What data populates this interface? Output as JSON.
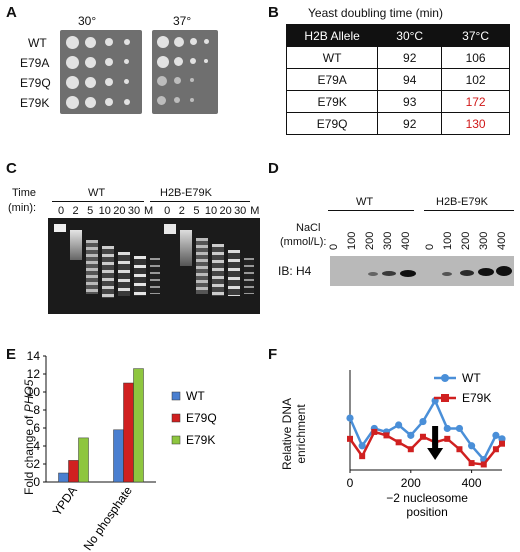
{
  "panels": {
    "A": "A",
    "B": "B",
    "C": "C",
    "D": "D",
    "E": "E",
    "F": "F"
  },
  "panelA": {
    "temps": [
      "30°",
      "37°"
    ],
    "strains": [
      "WT",
      "E79A",
      "E79Q",
      "E79K"
    ]
  },
  "panelB": {
    "title": "Yeast doubling time (min)",
    "headers": [
      "H2B Allele",
      "30°C",
      "37°C"
    ],
    "rows": [
      {
        "allele": "WT",
        "t30": "92",
        "t37": "106",
        "highlight": false
      },
      {
        "allele": "E79A",
        "t30": "94",
        "t37": "102",
        "highlight": false
      },
      {
        "allele": "E79K",
        "t30": "93",
        "t37": "172",
        "highlight": true
      },
      {
        "allele": "E79Q",
        "t30": "92",
        "t37": "130",
        "highlight": true
      }
    ]
  },
  "panelC": {
    "time_label_1": "Time",
    "time_label_2": "(min):",
    "group_wt": "WT",
    "group_mut": "H2B-E79K",
    "lanes": [
      "0",
      "2",
      "5",
      "10",
      "20",
      "30",
      "M",
      "0",
      "2",
      "5",
      "10",
      "20",
      "30",
      "M"
    ]
  },
  "panelD": {
    "nacl_1": "NaCl",
    "nacl_2": "(mmol/L):",
    "group_wt": "WT",
    "group_mut": "H2B-E79K",
    "lanes": [
      "0",
      "100",
      "200",
      "300",
      "400",
      "0",
      "100",
      "200",
      "300",
      "400"
    ],
    "ib_label": "IB: H4"
  },
  "chart_data": [
    {
      "type": "bar",
      "panel": "E",
      "ylabel_prefix": "Fold change of ",
      "ylabel_gene": "PHO5",
      "categories": [
        "YPDA",
        "No phosphate"
      ],
      "yticks": [
        "0",
        "2",
        "4",
        "6",
        "8",
        "10",
        "12",
        "14"
      ],
      "ylim": [
        0,
        14
      ],
      "series": [
        {
          "name": "WT",
          "color": "#4a7fd0",
          "values": [
            1.0,
            5.8
          ]
        },
        {
          "name": "E79Q",
          "color": "#d02020",
          "values": [
            2.4,
            11.0
          ]
        },
        {
          "name": "E79K",
          "color": "#8ec63f",
          "values": [
            4.9,
            12.6
          ]
        }
      ]
    },
    {
      "type": "line",
      "panel": "F",
      "ylabel_1": "Relative DNA",
      "ylabel_2": "enrichment",
      "xticks": [
        "0",
        "200",
        "400"
      ],
      "xlim": [
        0,
        500
      ],
      "ylim": [
        0,
        0.13
      ],
      "annotation_1": "−2 nucleosome",
      "annotation_2": "position",
      "arrow_x": 280,
      "series": [
        {
          "name": "WT",
          "color": "#4a8fd8",
          "marker": "circle",
          "x": [
            0,
            40,
            80,
            120,
            160,
            200,
            240,
            280,
            320,
            360,
            400,
            440,
            480,
            500
          ],
          "y": [
            0.075,
            0.035,
            0.06,
            0.055,
            0.065,
            0.05,
            0.07,
            0.1,
            0.06,
            0.06,
            0.035,
            0.015,
            0.05,
            0.045
          ]
        },
        {
          "name": "E79K",
          "color": "#d02020",
          "marker": "square",
          "x": [
            0,
            40,
            80,
            120,
            160,
            200,
            240,
            280,
            320,
            360,
            400,
            440,
            480,
            500
          ],
          "y": [
            0.045,
            0.02,
            0.055,
            0.05,
            0.04,
            0.03,
            0.048,
            0.04,
            0.045,
            0.03,
            0.01,
            0.008,
            0.03,
            0.038
          ]
        }
      ]
    }
  ]
}
